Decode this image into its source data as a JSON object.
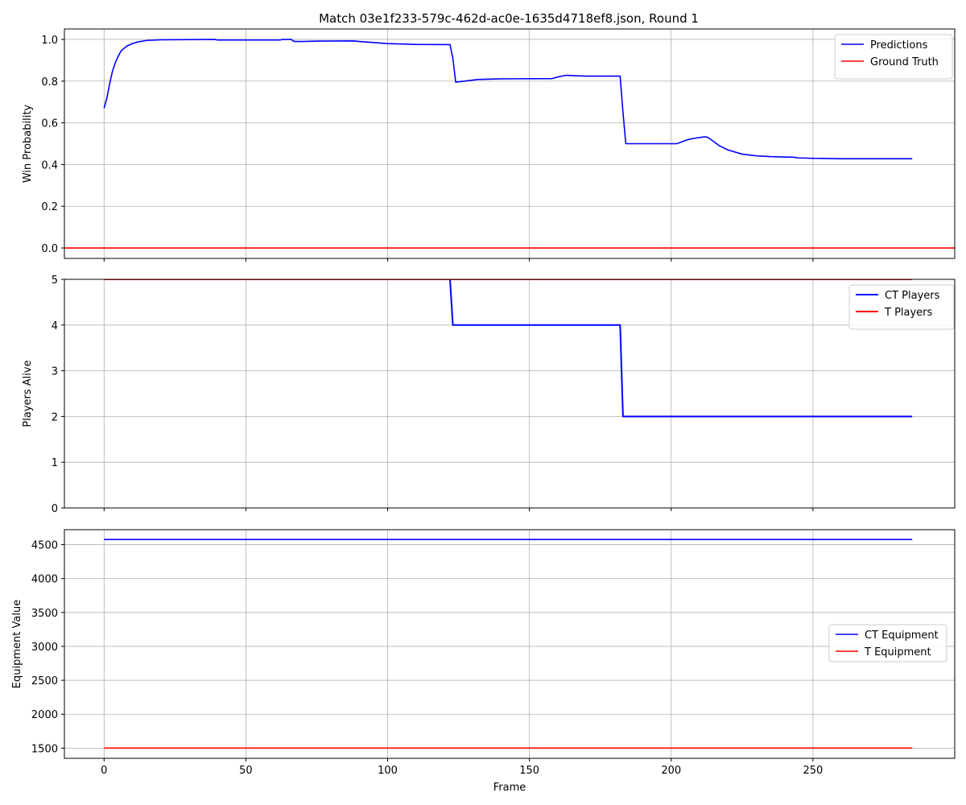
{
  "chart_data": [
    {
      "type": "line",
      "title": "Match 03e1f233-579c-462d-ac0e-1635d4718ef8.json, Round 1",
      "xlabel": "",
      "ylabel": "Win Probability",
      "xlim": [
        -14,
        300
      ],
      "ylim": [
        -0.05,
        1.05
      ],
      "xticks": [
        0,
        50,
        100,
        150,
        200,
        250
      ],
      "xticklabels": [
        "",
        "",
        "",
        "",
        "",
        ""
      ],
      "yticks": [
        0.0,
        0.2,
        0.4,
        0.6,
        0.8,
        1.0
      ],
      "yticklabels": [
        "0.0",
        "0.2",
        "0.4",
        "0.6",
        "0.8",
        "1.0"
      ],
      "grid": true,
      "legend_position": "upper-right",
      "series": [
        {
          "name": "Predictions",
          "color": "#0000ff",
          "points": [
            [
              0,
              0.67
            ],
            [
              1,
              0.72
            ],
            [
              2,
              0.79
            ],
            [
              3,
              0.85
            ],
            [
              4,
              0.89
            ],
            [
              5,
              0.92
            ],
            [
              6,
              0.945
            ],
            [
              8,
              0.968
            ],
            [
              10,
              0.98
            ],
            [
              12,
              0.988
            ],
            [
              15,
              0.995
            ],
            [
              20,
              0.998
            ],
            [
              30,
              0.999
            ],
            [
              39,
              1.0
            ],
            [
              40,
              0.997
            ],
            [
              62,
              0.997
            ],
            [
              63,
              1.0
            ],
            [
              66,
              1.0
            ],
            [
              67,
              0.99
            ],
            [
              70,
              0.99
            ],
            [
              75,
              0.992
            ],
            [
              88,
              0.993
            ],
            [
              90,
              0.99
            ],
            [
              95,
              0.985
            ],
            [
              100,
              0.98
            ],
            [
              110,
              0.976
            ],
            [
              122,
              0.975
            ],
            [
              123,
              0.91
            ],
            [
              124,
              0.795
            ],
            [
              127,
              0.8
            ],
            [
              132,
              0.808
            ],
            [
              140,
              0.811
            ],
            [
              158,
              0.812
            ],
            [
              160,
              0.82
            ],
            [
              163,
              0.828
            ],
            [
              166,
              0.826
            ],
            [
              170,
              0.824
            ],
            [
              182,
              0.824
            ],
            [
              183,
              0.65
            ],
            [
              184,
              0.5
            ],
            [
              202,
              0.5
            ],
            [
              204,
              0.51
            ],
            [
              206,
              0.52
            ],
            [
              209,
              0.528
            ],
            [
              212,
              0.533
            ],
            [
              213,
              0.53
            ],
            [
              215,
              0.51
            ],
            [
              217,
              0.49
            ],
            [
              220,
              0.47
            ],
            [
              225,
              0.45
            ],
            [
              230,
              0.442
            ],
            [
              235,
              0.438
            ],
            [
              243,
              0.435
            ],
            [
              245,
              0.432
            ],
            [
              250,
              0.43
            ],
            [
              260,
              0.428
            ],
            [
              285,
              0.428
            ]
          ]
        },
        {
          "name": "Ground Truth",
          "color": "#ff0000",
          "points": [
            [
              -14,
              0.0
            ],
            [
              300,
              0.0
            ]
          ]
        }
      ]
    },
    {
      "type": "line",
      "title": "",
      "xlabel": "",
      "ylabel": "Players Alive",
      "xlim": [
        -14,
        300
      ],
      "ylim": [
        0,
        5
      ],
      "xticks": [
        0,
        50,
        100,
        150,
        200,
        250
      ],
      "xticklabels": [
        "",
        "",
        "",
        "",
        "",
        ""
      ],
      "yticks": [
        0,
        1,
        2,
        3,
        4,
        5
      ],
      "yticklabels": [
        "0",
        "1",
        "2",
        "3",
        "4",
        "5"
      ],
      "grid": true,
      "legend_position": "upper-right",
      "series": [
        {
          "name": "CT Players",
          "color": "#0000ff",
          "points": [
            [
              0,
              5
            ],
            [
              122,
              5
            ],
            [
              123,
              4
            ],
            [
              182,
              4
            ],
            [
              183,
              2
            ],
            [
              285,
              2
            ]
          ]
        },
        {
          "name": "T Players",
          "color": "#ff0000",
          "points": [
            [
              0,
              5
            ],
            [
              285,
              5
            ]
          ]
        }
      ]
    },
    {
      "type": "line",
      "title": "",
      "xlabel": "Frame",
      "ylabel": "Equipment Value",
      "xlim": [
        -14,
        300
      ],
      "ylim": [
        1350,
        4720
      ],
      "xticks": [
        0,
        50,
        100,
        150,
        200,
        250
      ],
      "xticklabels": [
        "0",
        "50",
        "100",
        "150",
        "200",
        "250"
      ],
      "yticks": [
        1500,
        2000,
        2500,
        3000,
        3500,
        4000,
        4500
      ],
      "yticklabels": [
        "1500",
        "2000",
        "2500",
        "3000",
        "3500",
        "4000",
        "4500"
      ],
      "grid": true,
      "legend_position": "center-right",
      "series": [
        {
          "name": "CT Equipment",
          "color": "#0000ff",
          "points": [
            [
              0,
              4575
            ],
            [
              285,
              4575
            ]
          ]
        },
        {
          "name": "T Equipment",
          "color": "#ff0000",
          "points": [
            [
              0,
              1500
            ],
            [
              285,
              1500
            ]
          ]
        }
      ]
    }
  ]
}
